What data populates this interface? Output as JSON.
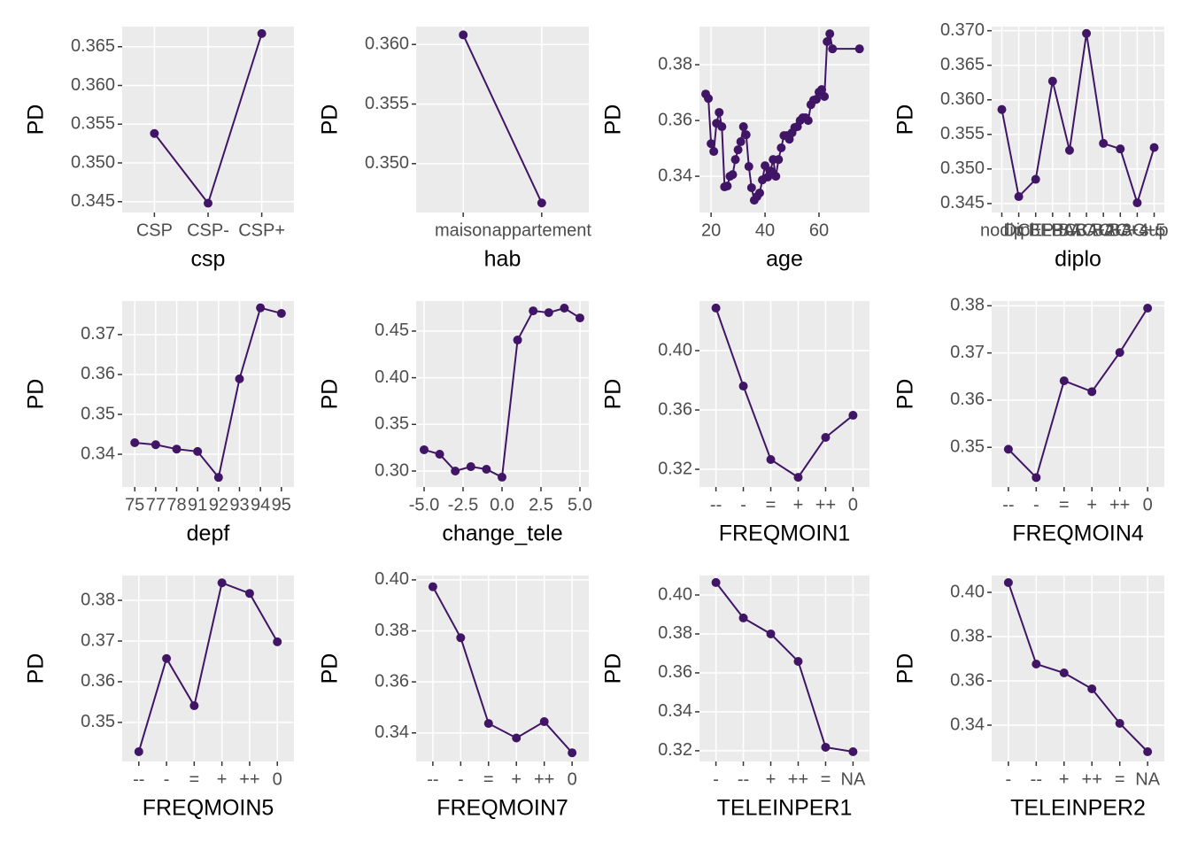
{
  "chart_data": [
    {
      "type": "line",
      "xlabel": "csp",
      "ylabel": "PD",
      "color": "#401565",
      "grid": true,
      "categories": [
        "CSP",
        "CSP-",
        "CSP+"
      ],
      "values": [
        0.3538,
        0.3448,
        0.3667
      ],
      "ylim": [
        0.3436,
        0.3676
      ],
      "yticks": [
        0.345,
        {
          "value": 0.35,
          "label": "0.350"
        },
        0.355,
        {
          "value": 0.36,
          "label": "0.360"
        },
        0.365
      ]
    },
    {
      "type": "line",
      "xlabel": "hab",
      "ylabel": "PD",
      "color": "#401565",
      "grid": true,
      "categories": [
        "maison",
        "appartement"
      ],
      "values": [
        0.3608,
        0.3467
      ],
      "ylim": [
        0.3459,
        0.3615
      ],
      "yticks": [
        {
          "value": 0.35,
          "label": "0.350"
        },
        0.355,
        {
          "value": 0.36,
          "label": "0.360"
        }
      ]
    },
    {
      "type": "line",
      "xlabel": "age",
      "ylabel": "PD",
      "color": "#401565",
      "grid": true,
      "x": [
        18,
        19,
        20,
        21,
        22,
        23,
        24,
        25,
        26,
        27,
        28,
        29,
        30,
        31,
        32,
        33,
        34,
        35,
        36,
        37,
        38,
        39,
        40,
        41,
        42,
        43,
        44,
        45,
        46,
        47,
        48,
        49,
        50,
        51,
        52,
        53,
        54,
        55,
        56,
        57,
        58,
        59,
        60,
        61,
        62,
        63,
        64,
        65,
        75
      ],
      "values": [
        0.3695,
        0.3679,
        0.3517,
        0.3489,
        0.359,
        0.3629,
        0.3578,
        0.3362,
        0.3365,
        0.34,
        0.3406,
        0.346,
        0.3495,
        0.3524,
        0.3578,
        0.3549,
        0.3435,
        0.3359,
        0.3314,
        0.3327,
        0.334,
        0.3387,
        0.3438,
        0.3397,
        0.3419,
        0.346,
        0.34,
        0.346,
        0.3502,
        0.3546,
        0.3546,
        0.3533,
        0.3556,
        0.3575,
        0.3578,
        0.36,
        0.361,
        0.361,
        0.36,
        0.3657,
        0.3673,
        0.3676,
        0.3702,
        0.3711,
        0.3686,
        0.3883,
        0.3911,
        0.3857,
        0.3857
      ],
      "xlim": [
        15.7,
        78.7
      ],
      "xticks": [
        20,
        40,
        60
      ],
      "ylim": [
        0.327,
        0.3937
      ],
      "yticks": [
        0.34,
        0.36,
        0.38
      ]
    },
    {
      "type": "line",
      "xlabel": "diplo",
      "ylabel": "PD",
      "color": "#401565",
      "grid": true,
      "categories": [
        "nodip",
        "Dipl",
        "CEP",
        "BEPC",
        "BAC",
        "BAC+2",
        "BAC+3",
        "BAC+4",
        "BAC+5",
        "sup"
      ],
      "values": [
        0.3586,
        0.346,
        0.3485,
        0.3627,
        0.3527,
        0.3696,
        0.3537,
        0.3529,
        0.3451,
        0.3531
      ],
      "ylim": [
        0.3437,
        0.3706
      ],
      "yticks": [
        0.345,
        {
          "value": 0.35,
          "label": "0.350"
        },
        0.355,
        {
          "value": 0.36,
          "label": "0.360"
        },
        0.365,
        {
          "value": 0.37,
          "label": "0.370"
        }
      ]
    },
    {
      "type": "line",
      "xlabel": "depf",
      "ylabel": "PD",
      "color": "#401565",
      "grid": true,
      "categories": [
        "75",
        "77",
        "78",
        "91",
        "92",
        "93",
        "94",
        "95"
      ],
      "values": [
        0.3429,
        0.3424,
        0.3413,
        0.3407,
        0.3342,
        0.3589,
        0.3767,
        0.3753
      ],
      "ylim": [
        0.3318,
        0.3784
      ],
      "yticks": [
        0.34,
        0.35,
        0.36,
        0.37
      ]
    },
    {
      "type": "line",
      "xlabel": "change_tele",
      "ylabel": "PD",
      "color": "#401565",
      "grid": true,
      "x": [
        -5,
        -4,
        -3,
        -2,
        -1,
        0,
        1,
        2,
        3,
        4,
        5
      ],
      "values": [
        0.3228,
        0.318,
        0.3,
        0.3047,
        0.3019,
        0.2934,
        0.4404,
        0.4717,
        0.4698,
        0.4746,
        0.4641
      ],
      "xlim": [
        -5.51,
        5.57
      ],
      "xticks": [
        {
          "value": -5,
          "label": "-5.0"
        },
        -2.5,
        {
          "value": 0,
          "label": "0.0"
        },
        2.5,
        {
          "value": 5,
          "label": "5.0"
        }
      ],
      "ylim": [
        0.2829,
        0.4822
      ],
      "yticks": [
        {
          "value": 0.3,
          "label": "0.30"
        },
        0.35,
        {
          "value": 0.4,
          "label": "0.40"
        },
        0.45
      ]
    },
    {
      "type": "line",
      "xlabel": "FREQMOIN1",
      "ylabel": "PD",
      "color": "#401565",
      "grid": true,
      "categories": [
        "--",
        "-",
        "=",
        "+",
        "++",
        "0"
      ],
      "values": [
        0.4287,
        0.3761,
        0.3266,
        0.3146,
        0.3415,
        0.3564
      ],
      "ylim": [
        0.3081,
        0.4334
      ],
      "yticks": [
        0.32,
        0.36,
        {
          "value": 0.4,
          "label": "0.40"
        }
      ]
    },
    {
      "type": "line",
      "xlabel": "FREQMOIN4",
      "ylabel": "PD",
      "color": "#401565",
      "grid": true,
      "categories": [
        "--",
        "-",
        "=",
        "+",
        "++",
        "0"
      ],
      "values": [
        0.3496,
        0.3436,
        0.3641,
        0.3618,
        0.3701,
        0.3795
      ],
      "ylim": [
        0.3416,
        0.381
      ],
      "yticks": [
        0.35,
        0.36,
        0.37,
        0.38
      ]
    },
    {
      "type": "line",
      "xlabel": "FREQMOIN5",
      "ylabel": "PD",
      "color": "#401565",
      "grid": true,
      "categories": [
        "--",
        "-",
        "=",
        "+",
        "++",
        "0"
      ],
      "values": [
        0.3428,
        0.3657,
        0.3541,
        0.3843,
        0.3817,
        0.3698
      ],
      "ylim": [
        0.3404,
        0.3861
      ],
      "yticks": [
        0.35,
        0.36,
        0.37,
        0.38
      ]
    },
    {
      "type": "line",
      "xlabel": "FREQMOIN7",
      "ylabel": "PD",
      "color": "#401565",
      "grid": true,
      "categories": [
        "--",
        "-",
        "=",
        "+",
        "++",
        "0"
      ],
      "values": [
        0.3973,
        0.3773,
        0.3437,
        0.338,
        0.3444,
        0.3322
      ],
      "ylim": [
        0.3288,
        0.4017
      ],
      "yticks": [
        0.34,
        0.36,
        0.38,
        {
          "value": 0.4,
          "label": "0.40"
        }
      ]
    },
    {
      "type": "line",
      "xlabel": "TELEINPER1",
      "ylabel": "PD",
      "color": "#401565",
      "grid": true,
      "categories": [
        "-",
        "--",
        "+",
        "++",
        "=",
        "NA"
      ],
      "values": [
        0.4064,
        0.3882,
        0.38,
        0.3659,
        0.3218,
        0.3195
      ],
      "ylim": [
        0.3145,
        0.41
      ],
      "yticks": [
        0.32,
        0.34,
        0.36,
        0.38,
        {
          "value": 0.4,
          "label": "0.40"
        }
      ]
    },
    {
      "type": "line",
      "xlabel": "TELEINPER2",
      "ylabel": "PD",
      "color": "#401565",
      "grid": true,
      "categories": [
        "-",
        "--",
        "+",
        "++",
        "=",
        "NA"
      ],
      "values": [
        0.4044,
        0.3676,
        0.3636,
        0.3564,
        0.3408,
        0.328
      ],
      "ylim": [
        0.3236,
        0.4076
      ],
      "yticks": [
        0.34,
        0.36,
        0.38,
        {
          "value": 0.4,
          "label": "0.40"
        }
      ]
    }
  ]
}
